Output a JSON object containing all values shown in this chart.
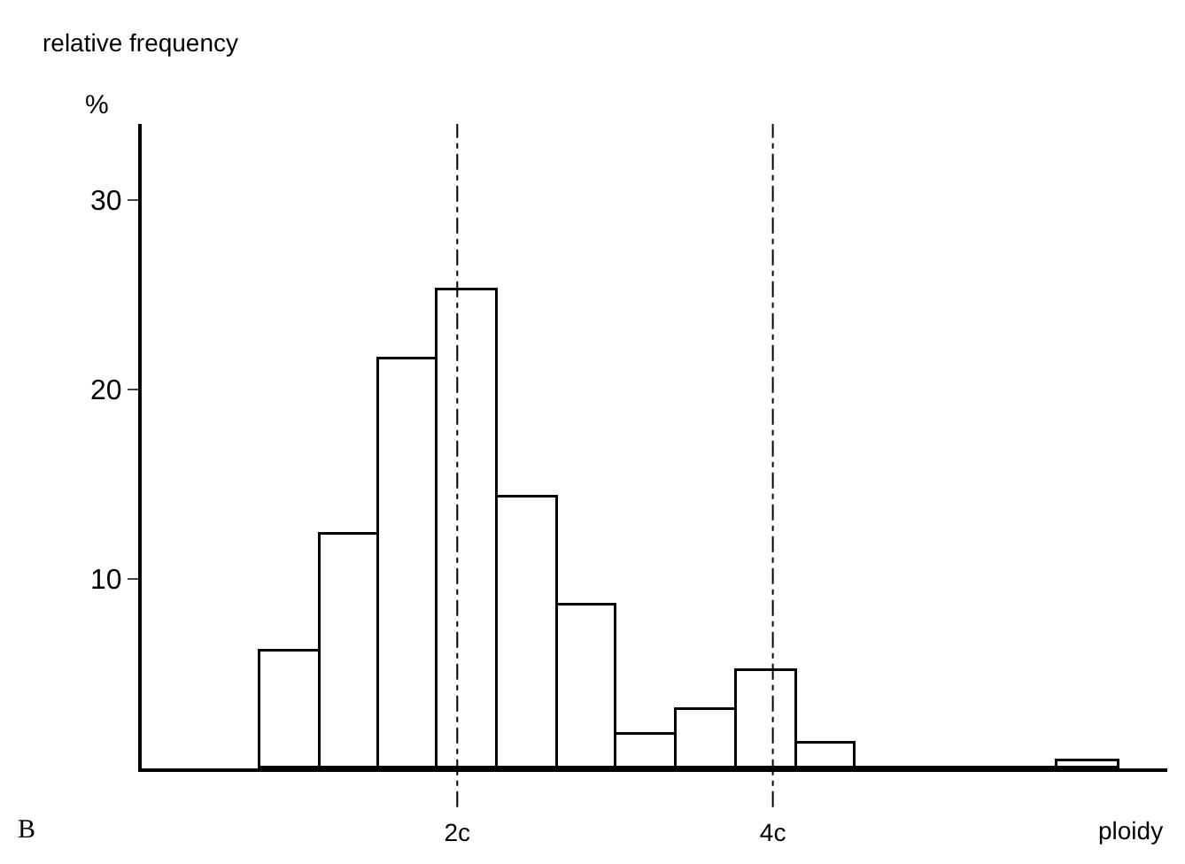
{
  "chart_data": {
    "type": "histogram",
    "ylabel": "relative frequency",
    "xlabel": "ploidy",
    "annotations": [
      "%",
      "B"
    ],
    "bins": [
      0.75,
      1.13,
      1.5,
      1.88,
      2.26,
      2.64,
      3.01,
      3.39,
      3.77,
      4.15,
      4.52,
      5.8,
      6.2
    ],
    "values": [
      6.2,
      12.3,
      21.6,
      25.2,
      14.3,
      8.6,
      1.8,
      3.1,
      5.1,
      1.3,
      0,
      0.4
    ],
    "color": "#000000",
    "xlim": [
      0,
      6.5
    ],
    "xticks": [
      {
        "value": 2,
        "label": "2c"
      },
      {
        "value": 4,
        "label": "4c"
      }
    ],
    "ylim": [
      0,
      34
    ],
    "yticks": [
      10,
      20,
      30
    ],
    "ref_lines": [
      {
        "axis": "x",
        "value": 2,
        "line_style": "dashdot",
        "color": "#000000"
      },
      {
        "axis": "x",
        "value": 4,
        "line_style": "dashdot",
        "color": "#000000"
      }
    ],
    "marker": "none"
  }
}
